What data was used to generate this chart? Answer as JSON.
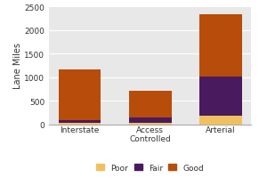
{
  "categories": [
    "Interstate",
    "Access\nControlled",
    "Arterial"
  ],
  "poor": [
    30,
    30,
    175
  ],
  "fair": [
    60,
    110,
    840
  ],
  "good": [
    1080,
    570,
    1310
  ],
  "color_poor": "#f0c060",
  "color_fair": "#4a1a5e",
  "color_good": "#b84c0a",
  "ylabel": "Lane Miles",
  "ylim": [
    0,
    2500
  ],
  "yticks": [
    0,
    500,
    1000,
    1500,
    2000,
    2500
  ],
  "fig_bg": "#ffffff",
  "plot_bg": "#e8e8e8",
  "border_color": "#aaaaaa"
}
